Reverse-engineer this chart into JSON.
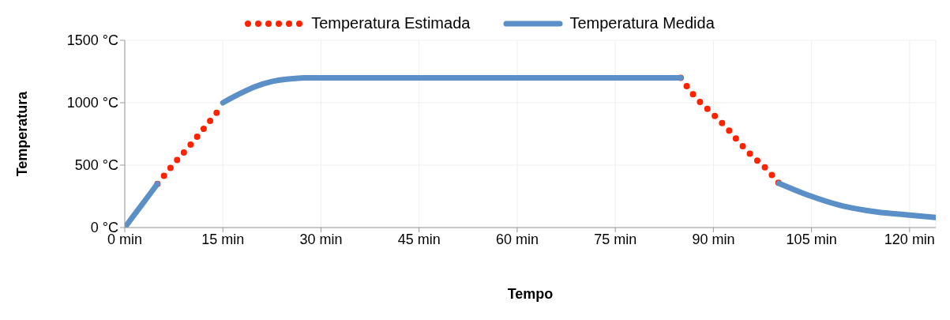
{
  "chart_data": {
    "type": "line",
    "xlabel": "Tempo",
    "ylabel": "Temperatura",
    "series": [
      {
        "name": "Temperatura Estimada",
        "color": "#ff2200",
        "line_style": "dotted",
        "x": [
          5,
          7.5,
          10,
          12.5,
          15,
          null,
          85,
          87,
          89.5,
          92,
          94,
          96,
          98,
          100
        ],
        "values": [
          350,
          510,
          660,
          820,
          980,
          null,
          1200,
          1060,
          930,
          800,
          680,
          570,
          475,
          355
        ]
      },
      {
        "name": "Temperatura Medida",
        "color": "#5b8fc7",
        "line_style": "solid",
        "x": [
          0,
          2.5,
          5,
          null,
          15,
          17.5,
          20,
          22.5,
          25,
          27.5,
          30,
          60,
          85,
          null,
          100,
          105,
          110,
          115,
          120,
          124
        ],
        "values": [
          0,
          175,
          350,
          null,
          1000,
          1070,
          1130,
          1170,
          1190,
          1200,
          1200,
          1200,
          1200,
          null,
          355,
          250,
          170,
          125,
          100,
          80
        ]
      }
    ],
    "xlim": [
      0,
      124
    ],
    "xticks": [
      {
        "value": 0,
        "label": "0 min"
      },
      {
        "value": 15,
        "label": "15 min"
      },
      {
        "value": 30,
        "label": "30 min"
      },
      {
        "value": 45,
        "label": "45 min"
      },
      {
        "value": 60,
        "label": "60 min"
      },
      {
        "value": 75,
        "label": "75 min"
      },
      {
        "value": 90,
        "label": "90 min"
      },
      {
        "value": 105,
        "label": "105 min"
      },
      {
        "value": 120,
        "label": "120 min"
      }
    ],
    "ylim": [
      0,
      1500
    ],
    "yticks": [
      {
        "value": 0,
        "label": "0 °C"
      },
      {
        "value": 500,
        "label": "500 °C"
      },
      {
        "value": 1000,
        "label": "1000 °C"
      },
      {
        "value": 1500,
        "label": "1500 °C"
      }
    ],
    "grid": true,
    "legend": "top",
    "marker": "none"
  }
}
